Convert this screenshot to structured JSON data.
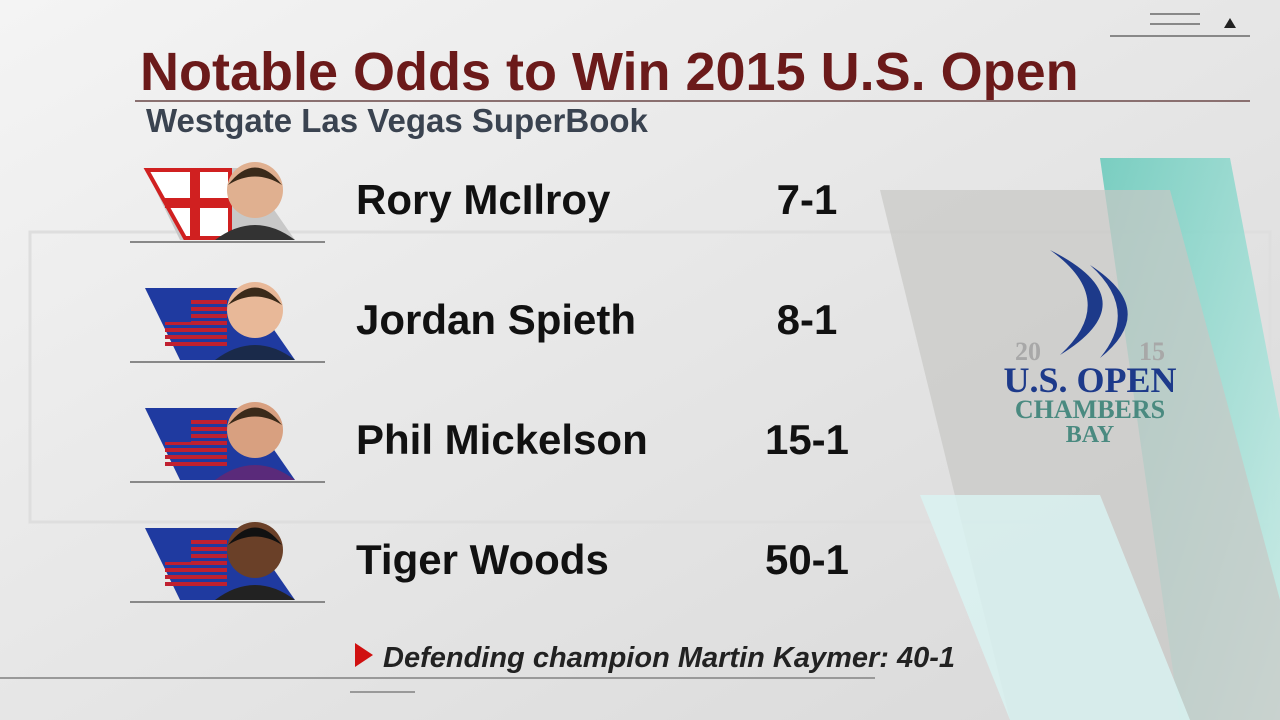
{
  "header": {
    "title": "Notable Odds to Win 2015 U.S. Open",
    "subtitle": "Westgate Las Vegas SuperBook"
  },
  "rows": [
    {
      "name": "Rory McIlroy",
      "odds": "7-1"
    },
    {
      "name": "Jordan Spieth",
      "odds": "8-1"
    },
    {
      "name": "Phil Mickelson",
      "odds": "15-1"
    },
    {
      "name": "Tiger Woods",
      "odds": "50-1"
    }
  ],
  "footnote": "Defending champion Martin Kaymer: 40-1",
  "logo": {
    "year_left": "20",
    "year_right": "15",
    "event": "U.S. OPEN",
    "venue_1": "CHAMBERS",
    "venue_2": "BAY"
  }
}
